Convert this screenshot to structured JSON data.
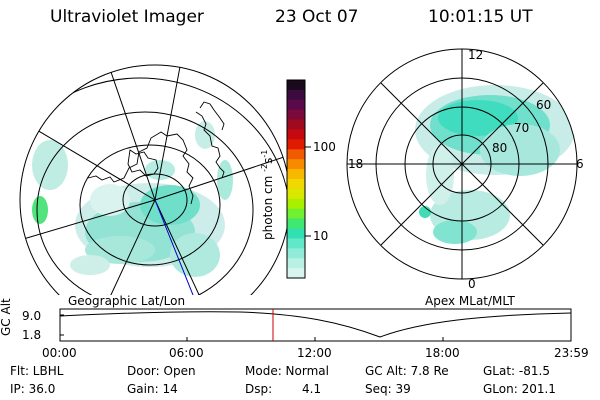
{
  "header": {
    "instrument": "Ultraviolet Imager",
    "date": "23 Oct 07",
    "time": "10:01:15 UT"
  },
  "left_panel": {
    "caption": "Geographic Lat/Lon"
  },
  "right_panel": {
    "caption": "Apex MLat/MLT",
    "mlt_labels": [
      "12",
      "18",
      "6",
      "0"
    ],
    "lat_labels": [
      "60",
      "70",
      "80"
    ]
  },
  "colorbar": {
    "unit_label": "photon cm",
    "unit_sup1": "-2",
    "unit_mid": "s",
    "unit_sup2": "-1",
    "ticks": [
      "100",
      "10"
    ],
    "colors": [
      "#1a0a1c",
      "#3b0a3e",
      "#5a0a4a",
      "#7a0a3a",
      "#a00a1e",
      "#c40a10",
      "#e01a00",
      "#f05a00",
      "#f88a00",
      "#f8b800",
      "#f0d800",
      "#d8e800",
      "#a8f000",
      "#70f030",
      "#40e870",
      "#30e0b0",
      "#60e8c8",
      "#90ecd8",
      "#b8f0e4",
      "#d8f4ee"
    ]
  },
  "timeline": {
    "y_axis_label": "GC Alt",
    "y_ticks": [
      "9.0",
      "1.8"
    ],
    "x_ticks": [
      "00:00",
      "06:00",
      "12:00",
      "18:00",
      "23:59"
    ],
    "marker_color": "#cc0000"
  },
  "info": {
    "flt": "Flt: LBHL",
    "ip": "IP: 36.0",
    "door": "Door: Open",
    "gain": "Gain: 14",
    "mode": "Mode: Normal",
    "dsp_label": "Dsp:",
    "dsp_value": "4.1",
    "gc_alt": "GC Alt: 7.8 Re",
    "seq": "Seq: 39",
    "glat": "GLat: -81.5",
    "glon": "GLon: 201.1"
  }
}
